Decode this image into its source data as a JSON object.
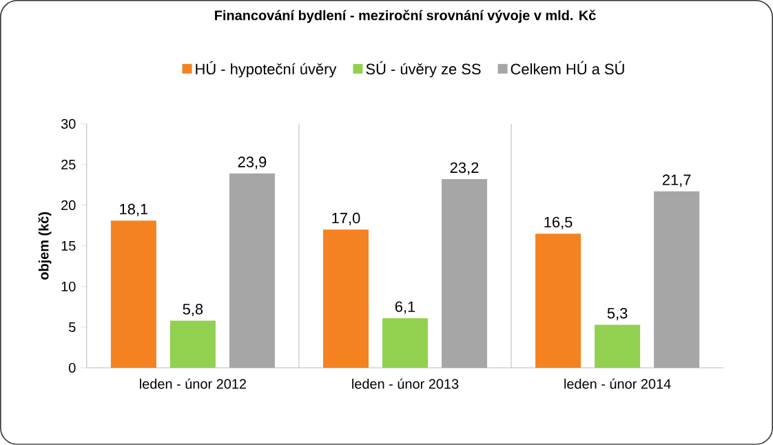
{
  "chart_data": {
    "type": "bar",
    "title": "Financování bydlení - meziroční srovnání vývoje v mld. Kč",
    "ylabel": "objem (kč)",
    "categories": [
      "leden - únor 2012",
      "leden - únor 2013",
      "leden - únor 2014"
    ],
    "series": [
      {
        "name": "HÚ - hypoteční úvěry",
        "color": "#f58220",
        "values": [
          18.1,
          17.0,
          16.5
        ],
        "value_labels": [
          "18,1",
          "17,0",
          "16,5"
        ]
      },
      {
        "name": "SÚ - úvěry ze SS",
        "color": "#92d050",
        "values": [
          5.8,
          6.1,
          5.3
        ],
        "value_labels": [
          "5,8",
          "6,1",
          "5,3"
        ]
      },
      {
        "name": "Celkem HÚ a SÚ",
        "color": "#a6a6a6",
        "values": [
          23.9,
          23.2,
          21.7
        ],
        "value_labels": [
          "23,9",
          "23,2",
          "21,7"
        ]
      }
    ],
    "ylim": [
      0,
      30
    ],
    "yticks": [
      0,
      5,
      10,
      15,
      20,
      25,
      30
    ],
    "grid": false,
    "legend": "top"
  }
}
